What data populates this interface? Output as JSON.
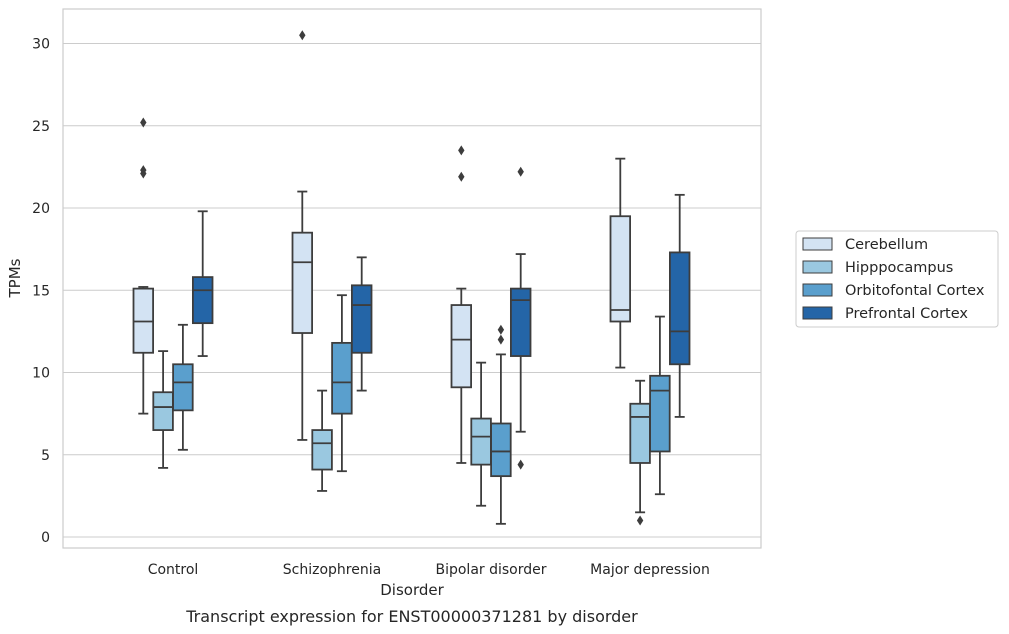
{
  "caption": "Transcript expression for ENST00000371281 by disorder",
  "chart_data": {
    "type": "boxplot",
    "xlabel": "Disorder",
    "ylabel": "TPMs",
    "ylim": [
      -0.6,
      32.0
    ],
    "yticks": [
      0,
      5,
      10,
      15,
      20,
      25,
      30
    ],
    "grid": true,
    "legend_placement": "center-right, outside plot",
    "categories": [
      "Control",
      "Schizophrenia",
      "Bipolar disorder",
      "Major depression"
    ],
    "series": [
      {
        "name": "Cerebellum",
        "color": "#d3e3f3",
        "boxes": [
          {
            "whisker_low": 7.5,
            "q1": 11.2,
            "median": 13.1,
            "q3": 15.1,
            "whisker_high": 15.2,
            "outliers": [
              25.2,
              22.3,
              22.1
            ]
          },
          {
            "whisker_low": 5.9,
            "q1": 12.4,
            "median": 16.7,
            "q3": 18.5,
            "whisker_high": 21.0,
            "outliers": [
              30.5
            ]
          },
          {
            "whisker_low": 4.5,
            "q1": 9.1,
            "median": 12.0,
            "q3": 14.1,
            "whisker_high": 15.1,
            "outliers": [
              23.5,
              21.9
            ]
          },
          {
            "whisker_low": 10.3,
            "q1": 13.1,
            "median": 13.8,
            "q3": 19.5,
            "whisker_high": 23.0,
            "outliers": []
          }
        ]
      },
      {
        "name": "Hipppocampus",
        "color": "#9ac8e0",
        "boxes": [
          {
            "whisker_low": 4.2,
            "q1": 6.5,
            "median": 7.9,
            "q3": 8.8,
            "whisker_high": 11.3,
            "outliers": []
          },
          {
            "whisker_low": 2.8,
            "q1": 4.1,
            "median": 5.7,
            "q3": 6.5,
            "whisker_high": 8.9,
            "outliers": []
          },
          {
            "whisker_low": 1.9,
            "q1": 4.4,
            "median": 6.1,
            "q3": 7.2,
            "whisker_high": 10.6,
            "outliers": []
          },
          {
            "whisker_low": 1.5,
            "q1": 4.5,
            "median": 7.3,
            "q3": 8.1,
            "whisker_high": 9.5,
            "outliers": [
              1.0
            ]
          }
        ]
      },
      {
        "name": "Orbitofontal Cortex",
        "color": "#5a9fcd",
        "boxes": [
          {
            "whisker_low": 5.3,
            "q1": 7.7,
            "median": 9.4,
            "q3": 10.5,
            "whisker_high": 12.9,
            "outliers": []
          },
          {
            "whisker_low": 4.0,
            "q1": 7.5,
            "median": 9.4,
            "q3": 11.8,
            "whisker_high": 14.7,
            "outliers": []
          },
          {
            "whisker_low": 0.8,
            "q1": 3.7,
            "median": 5.2,
            "q3": 6.9,
            "whisker_high": 11.1,
            "outliers": [
              12.6,
              12.0
            ]
          },
          {
            "whisker_low": 2.6,
            "q1": 5.2,
            "median": 8.9,
            "q3": 9.8,
            "whisker_high": 13.4,
            "outliers": []
          }
        ]
      },
      {
        "name": "Prefrontal Cortex",
        "color": "#2465a7",
        "boxes": [
          {
            "whisker_low": 11.0,
            "q1": 13.0,
            "median": 15.0,
            "q3": 15.8,
            "whisker_high": 19.8,
            "outliers": []
          },
          {
            "whisker_low": 8.9,
            "q1": 11.2,
            "median": 14.1,
            "q3": 15.3,
            "whisker_high": 17.0,
            "outliers": []
          },
          {
            "whisker_low": 6.4,
            "q1": 11.0,
            "median": 14.4,
            "q3": 15.1,
            "whisker_high": 17.2,
            "outliers": [
              22.2,
              4.4
            ]
          },
          {
            "whisker_low": 7.3,
            "q1": 10.5,
            "median": 12.5,
            "q3": 17.3,
            "whisker_high": 20.8,
            "outliers": []
          }
        ]
      }
    ]
  }
}
